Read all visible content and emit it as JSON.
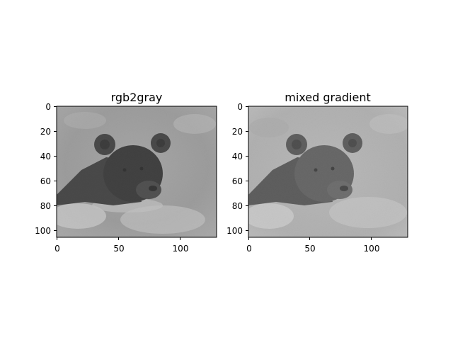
{
  "figure": {
    "background": "#ffffff",
    "colormap": "gray",
    "panels": [
      {
        "title": "rgb2gray",
        "image_description": "grayscale bear swimming in water",
        "x_ticks": [
          "0",
          "50",
          "100"
        ],
        "y_ticks": [
          "0",
          "20",
          "40",
          "60",
          "80",
          "100"
        ],
        "x_range": [
          0,
          130
        ],
        "y_range": [
          107,
          0
        ]
      },
      {
        "title": "mixed gradient",
        "image_description": "gradient-domain blended bear swimming in water",
        "x_ticks": [
          "0",
          "50",
          "100"
        ],
        "y_ticks": [
          "0",
          "20",
          "40",
          "60",
          "80",
          "100"
        ],
        "x_range": [
          0,
          130
        ],
        "y_range": [
          107,
          0
        ]
      }
    ]
  }
}
